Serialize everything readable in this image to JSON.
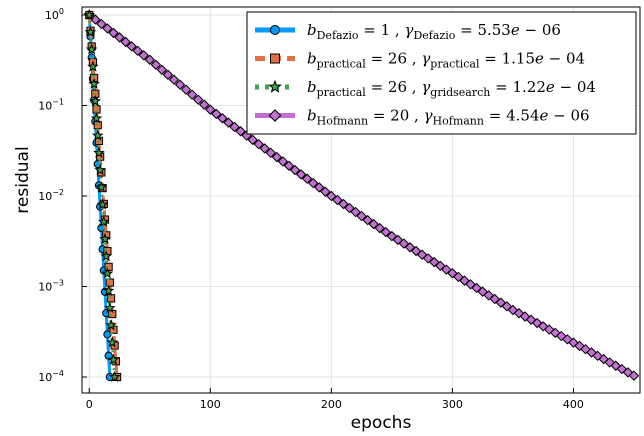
{
  "chart_data": {
    "type": "line",
    "xlabel": "epochs",
    "ylabel": "residual",
    "xlim": [
      -6,
      455
    ],
    "ylim": [
      0.0001,
      1.0
    ],
    "yscale": "log",
    "grid": true,
    "legend_position": "top-right",
    "x_ticks": [
      {
        "value": 0,
        "label": "0"
      },
      {
        "value": 100,
        "label": "100"
      },
      {
        "value": 200,
        "label": "200"
      },
      {
        "value": 300,
        "label": "300"
      },
      {
        "value": 400,
        "label": "400"
      }
    ],
    "y_ticks": [
      {
        "value": 1,
        "base": "10",
        "exp": "0"
      },
      {
        "value": 0.1,
        "base": "10",
        "exp": "−1"
      },
      {
        "value": 0.01,
        "base": "10",
        "exp": "−2"
      },
      {
        "value": 0.001,
        "base": "10",
        "exp": "−3"
      },
      {
        "value": 0.0001,
        "base": "10",
        "exp": "−4"
      }
    ],
    "series": [
      {
        "name": "b_Defazio = 1 , γ_Defazio = 5.53e − 06",
        "legend": {
          "b_sub": "Defazio",
          "b_val": "= 1",
          "g_sub": "Defazio",
          "g_val": "= 5.53",
          "g_exp": "e − 06"
        },
        "color": "#009af9",
        "marker": "circle",
        "line_style": "solid",
        "x_start": 0,
        "x_end": 17,
        "y_start": 1.0,
        "y_end": 0.0001,
        "step": 1
      },
      {
        "name": "b_practical = 26 , γ_practical = 1.15e − 04",
        "legend": {
          "b_sub": "practical",
          "b_val": "= 26",
          "g_sub": "practical",
          "g_val": "= 1.15",
          "g_exp": "e − 04"
        },
        "color": "#e26f46",
        "marker": "square",
        "line_style": "dash",
        "x_start": 0,
        "x_end": 23,
        "y_start": 1.0,
        "y_end": 0.0001,
        "step": 1
      },
      {
        "name": "b_practical = 26 , γ_gridsearch = 1.22e − 04",
        "legend": {
          "b_sub": "practical",
          "b_val": "= 26",
          "g_sub": "gridsearch",
          "g_val": "= 1.22",
          "g_exp": "e − 04"
        },
        "color": "#3da44d",
        "marker": "star",
        "line_style": "dot",
        "x_start": 0,
        "x_end": 21,
        "y_start": 1.0,
        "y_end": 0.0001,
        "step": 1
      },
      {
        "name": "b_Hofmann = 20 , γ_Hofmann = 4.54e − 06",
        "legend": {
          "b_sub": "Hofmann",
          "b_val": "= 20",
          "g_sub": "Hofmann",
          "g_val": "= 4.54",
          "g_exp": "e − 06"
        },
        "color": "#c271d2",
        "marker": "diamond",
        "line_style": "solid",
        "x_start": 0,
        "x_end": 452,
        "y_start": 1.0,
        "y_end": 0.0001,
        "step": 5,
        "curve_points": [
          [
            0,
            1.0
          ],
          [
            50,
            0.32
          ],
          [
            100,
            0.09
          ],
          [
            150,
            0.03
          ],
          [
            200,
            0.01
          ],
          [
            250,
            0.0036
          ],
          [
            300,
            0.0014
          ],
          [
            350,
            0.00055
          ],
          [
            400,
            0.00024
          ],
          [
            452,
            0.0001
          ]
        ]
      }
    ]
  }
}
